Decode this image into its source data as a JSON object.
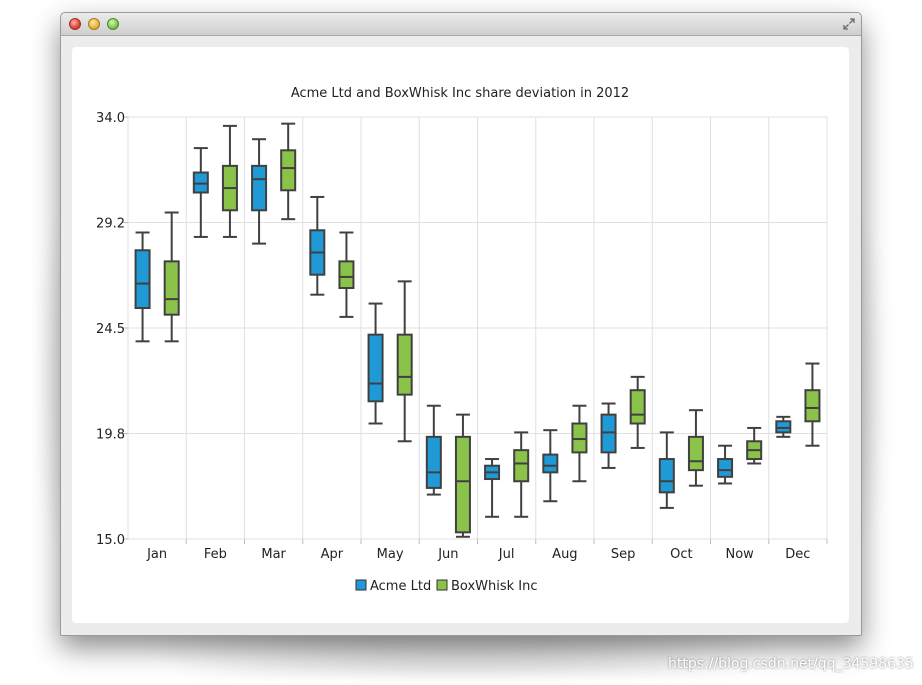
{
  "window": {
    "title": ""
  },
  "watermark": "https://blog.csdn.net/qq_34598635",
  "colors": {
    "acme": "#1f9ad6",
    "boxwhisk": "#8bc34a",
    "whisker": "#404040",
    "grid": "#e0e0e0"
  },
  "chart_data": {
    "type": "boxplot",
    "title": "Acme Ltd and BoxWhisk Inc share deviation in 2012",
    "categories": [
      "Jan",
      "Feb",
      "Mar",
      "Apr",
      "May",
      "Jun",
      "Jul",
      "Aug",
      "Sep",
      "Oct",
      "Now",
      "Dec"
    ],
    "y_ticks": [
      "34.0",
      "29.2",
      "24.5",
      "19.8",
      "15.0"
    ],
    "ylim": [
      15.0,
      34.0
    ],
    "legend_position": "bottom",
    "series": [
      {
        "name": "Acme Ltd",
        "color": "#1f9ad6",
        "boxes": [
          {
            "min": 23.9,
            "q1": 25.4,
            "median": 26.5,
            "q3": 28.0,
            "max": 28.8
          },
          {
            "min": 28.6,
            "q1": 30.6,
            "median": 31.0,
            "q3": 31.5,
            "max": 32.6
          },
          {
            "min": 28.3,
            "q1": 29.8,
            "median": 31.2,
            "q3": 31.8,
            "max": 33.0
          },
          {
            "min": 26.0,
            "q1": 26.9,
            "median": 27.9,
            "q3": 28.9,
            "max": 30.4
          },
          {
            "min": 20.2,
            "q1": 21.2,
            "median": 22.0,
            "q3": 24.2,
            "max": 25.6
          },
          {
            "min": 17.0,
            "q1": 17.3,
            "median": 18.0,
            "q3": 19.6,
            "max": 21.0
          },
          {
            "min": 16.0,
            "q1": 17.7,
            "median": 18.0,
            "q3": 18.3,
            "max": 18.6
          },
          {
            "min": 16.7,
            "q1": 18.0,
            "median": 18.3,
            "q3": 18.8,
            "max": 19.9
          },
          {
            "min": 18.2,
            "q1": 18.9,
            "median": 19.8,
            "q3": 20.6,
            "max": 21.1
          },
          {
            "min": 16.4,
            "q1": 17.1,
            "median": 17.6,
            "q3": 18.6,
            "max": 19.8
          },
          {
            "min": 17.5,
            "q1": 17.8,
            "median": 18.1,
            "q3": 18.6,
            "max": 19.2
          },
          {
            "min": 19.6,
            "q1": 19.8,
            "median": 20.0,
            "q3": 20.3,
            "max": 20.5
          }
        ]
      },
      {
        "name": "BoxWhisk Inc",
        "color": "#8bc34a",
        "boxes": [
          {
            "min": 23.9,
            "q1": 25.1,
            "median": 25.8,
            "q3": 27.5,
            "max": 29.7
          },
          {
            "min": 28.6,
            "q1": 29.8,
            "median": 30.8,
            "q3": 31.8,
            "max": 33.6
          },
          {
            "min": 29.4,
            "q1": 30.7,
            "median": 31.7,
            "q3": 32.5,
            "max": 33.7
          },
          {
            "min": 25.0,
            "q1": 26.3,
            "median": 26.8,
            "q3": 27.5,
            "max": 28.8
          },
          {
            "min": 19.4,
            "q1": 21.5,
            "median": 22.3,
            "q3": 24.2,
            "max": 26.6
          },
          {
            "min": 15.1,
            "q1": 15.3,
            "median": 17.6,
            "q3": 19.6,
            "max": 20.6
          },
          {
            "min": 16.0,
            "q1": 17.6,
            "median": 18.4,
            "q3": 19.0,
            "max": 19.8
          },
          {
            "min": 17.6,
            "q1": 18.9,
            "median": 19.5,
            "q3": 20.2,
            "max": 21.0
          },
          {
            "min": 19.1,
            "q1": 20.2,
            "median": 20.6,
            "q3": 21.7,
            "max": 22.3
          },
          {
            "min": 17.4,
            "q1": 18.1,
            "median": 18.5,
            "q3": 19.6,
            "max": 20.8
          },
          {
            "min": 18.4,
            "q1": 18.6,
            "median": 19.0,
            "q3": 19.4,
            "max": 20.0
          },
          {
            "min": 19.2,
            "q1": 20.3,
            "median": 20.9,
            "q3": 21.7,
            "max": 22.9
          }
        ]
      }
    ]
  }
}
